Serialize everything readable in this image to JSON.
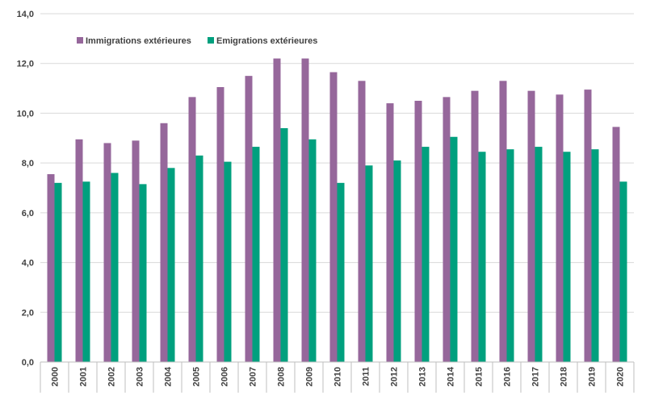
{
  "chart_data": {
    "type": "bar",
    "categories": [
      "2000",
      "2001",
      "2002",
      "2003",
      "2004",
      "2005",
      "2006",
      "2007",
      "2008",
      "2009",
      "2010",
      "2011",
      "2012",
      "2013",
      "2014",
      "2015",
      "2016",
      "2017",
      "2018",
      "2019",
      "2020"
    ],
    "series": [
      {
        "name": "Immigrations extérieures",
        "color": "#96679b",
        "values": [
          7.55,
          8.95,
          8.8,
          8.9,
          9.6,
          10.65,
          11.05,
          11.5,
          12.2,
          12.2,
          11.65,
          11.3,
          10.4,
          10.5,
          10.65,
          10.9,
          11.3,
          10.9,
          10.75,
          10.95,
          9.45
        ]
      },
      {
        "name": "Emigrations extérieures",
        "color": "#00a07e",
        "values": [
          7.2,
          7.25,
          7.6,
          7.15,
          7.8,
          8.3,
          8.05,
          8.65,
          9.4,
          8.95,
          7.2,
          7.9,
          8.1,
          8.65,
          9.05,
          8.45,
          8.55,
          8.65,
          8.45,
          8.55,
          7.25
        ]
      }
    ],
    "yticks": [
      "0,0",
      "2,0",
      "4,0",
      "6,0",
      "8,0",
      "10,0",
      "12,0",
      "14,0"
    ],
    "ylim": [
      0,
      14
    ],
    "grid": "horizontal",
    "legend_position": "top-left"
  }
}
